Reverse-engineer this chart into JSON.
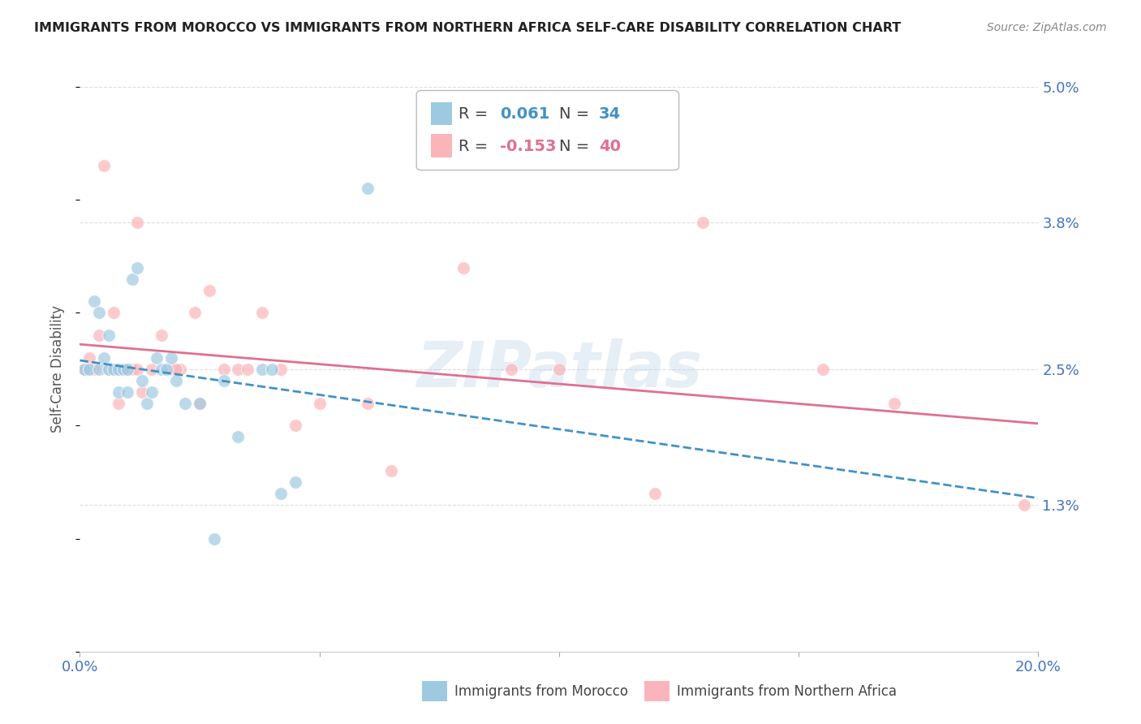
{
  "title": "IMMIGRANTS FROM MOROCCO VS IMMIGRANTS FROM NORTHERN AFRICA SELF-CARE DISABILITY CORRELATION CHART",
  "source": "Source: ZipAtlas.com",
  "ylabel": "Self-Care Disability",
  "xlim": [
    0.0,
    0.2
  ],
  "ylim": [
    0.0,
    0.05
  ],
  "yticks": [
    0.013,
    0.025,
    0.038,
    0.05
  ],
  "ytick_labels": [
    "1.3%",
    "2.5%",
    "3.8%",
    "5.0%"
  ],
  "xticks": [
    0.0,
    0.05,
    0.1,
    0.15,
    0.2
  ],
  "xtick_labels": [
    "0.0%",
    "",
    "",
    "",
    "20.0%"
  ],
  "morocco_color": "#9ecae1",
  "northern_africa_color": "#fbb4b9",
  "morocco_line_color": "#4292c6",
  "northern_africa_line_color": "#e07090",
  "morocco_R": 0.061,
  "morocco_N": 34,
  "northern_africa_R": -0.153,
  "northern_africa_N": 40,
  "morocco_x": [
    0.001,
    0.002,
    0.003,
    0.004,
    0.005,
    0.006,
    0.007,
    0.008,
    0.009,
    0.01,
    0.011,
    0.012,
    0.013,
    0.014,
    0.015,
    0.016,
    0.017,
    0.018,
    0.019,
    0.02,
    0.022,
    0.025,
    0.03,
    0.033,
    0.038,
    0.04,
    0.042,
    0.045,
    0.028,
    0.006,
    0.004,
    0.008,
    0.01,
    0.06
  ],
  "morocco_y": [
    0.025,
    0.025,
    0.031,
    0.025,
    0.026,
    0.025,
    0.025,
    0.025,
    0.025,
    0.025,
    0.033,
    0.034,
    0.024,
    0.022,
    0.023,
    0.026,
    0.025,
    0.025,
    0.026,
    0.024,
    0.022,
    0.022,
    0.024,
    0.019,
    0.025,
    0.025,
    0.014,
    0.015,
    0.01,
    0.028,
    0.03,
    0.023,
    0.023,
    0.041
  ],
  "northern_africa_x": [
    0.001,
    0.002,
    0.003,
    0.004,
    0.005,
    0.006,
    0.007,
    0.008,
    0.009,
    0.01,
    0.011,
    0.012,
    0.013,
    0.015,
    0.017,
    0.019,
    0.021,
    0.024,
    0.027,
    0.03,
    0.033,
    0.038,
    0.042,
    0.05,
    0.06,
    0.08,
    0.09,
    0.1,
    0.12,
    0.13,
    0.155,
    0.17,
    0.197,
    0.008,
    0.012,
    0.02,
    0.025,
    0.035,
    0.045,
    0.065
  ],
  "northern_africa_y": [
    0.025,
    0.026,
    0.025,
    0.028,
    0.043,
    0.025,
    0.03,
    0.025,
    0.025,
    0.025,
    0.025,
    0.025,
    0.023,
    0.025,
    0.028,
    0.025,
    0.025,
    0.03,
    0.032,
    0.025,
    0.025,
    0.03,
    0.025,
    0.022,
    0.022,
    0.034,
    0.025,
    0.025,
    0.014,
    0.038,
    0.025,
    0.022,
    0.013,
    0.022,
    0.038,
    0.025,
    0.022,
    0.025,
    0.02,
    0.016
  ],
  "watermark": "ZIPatlas",
  "background_color": "#ffffff",
  "grid_color": "#dddddd"
}
